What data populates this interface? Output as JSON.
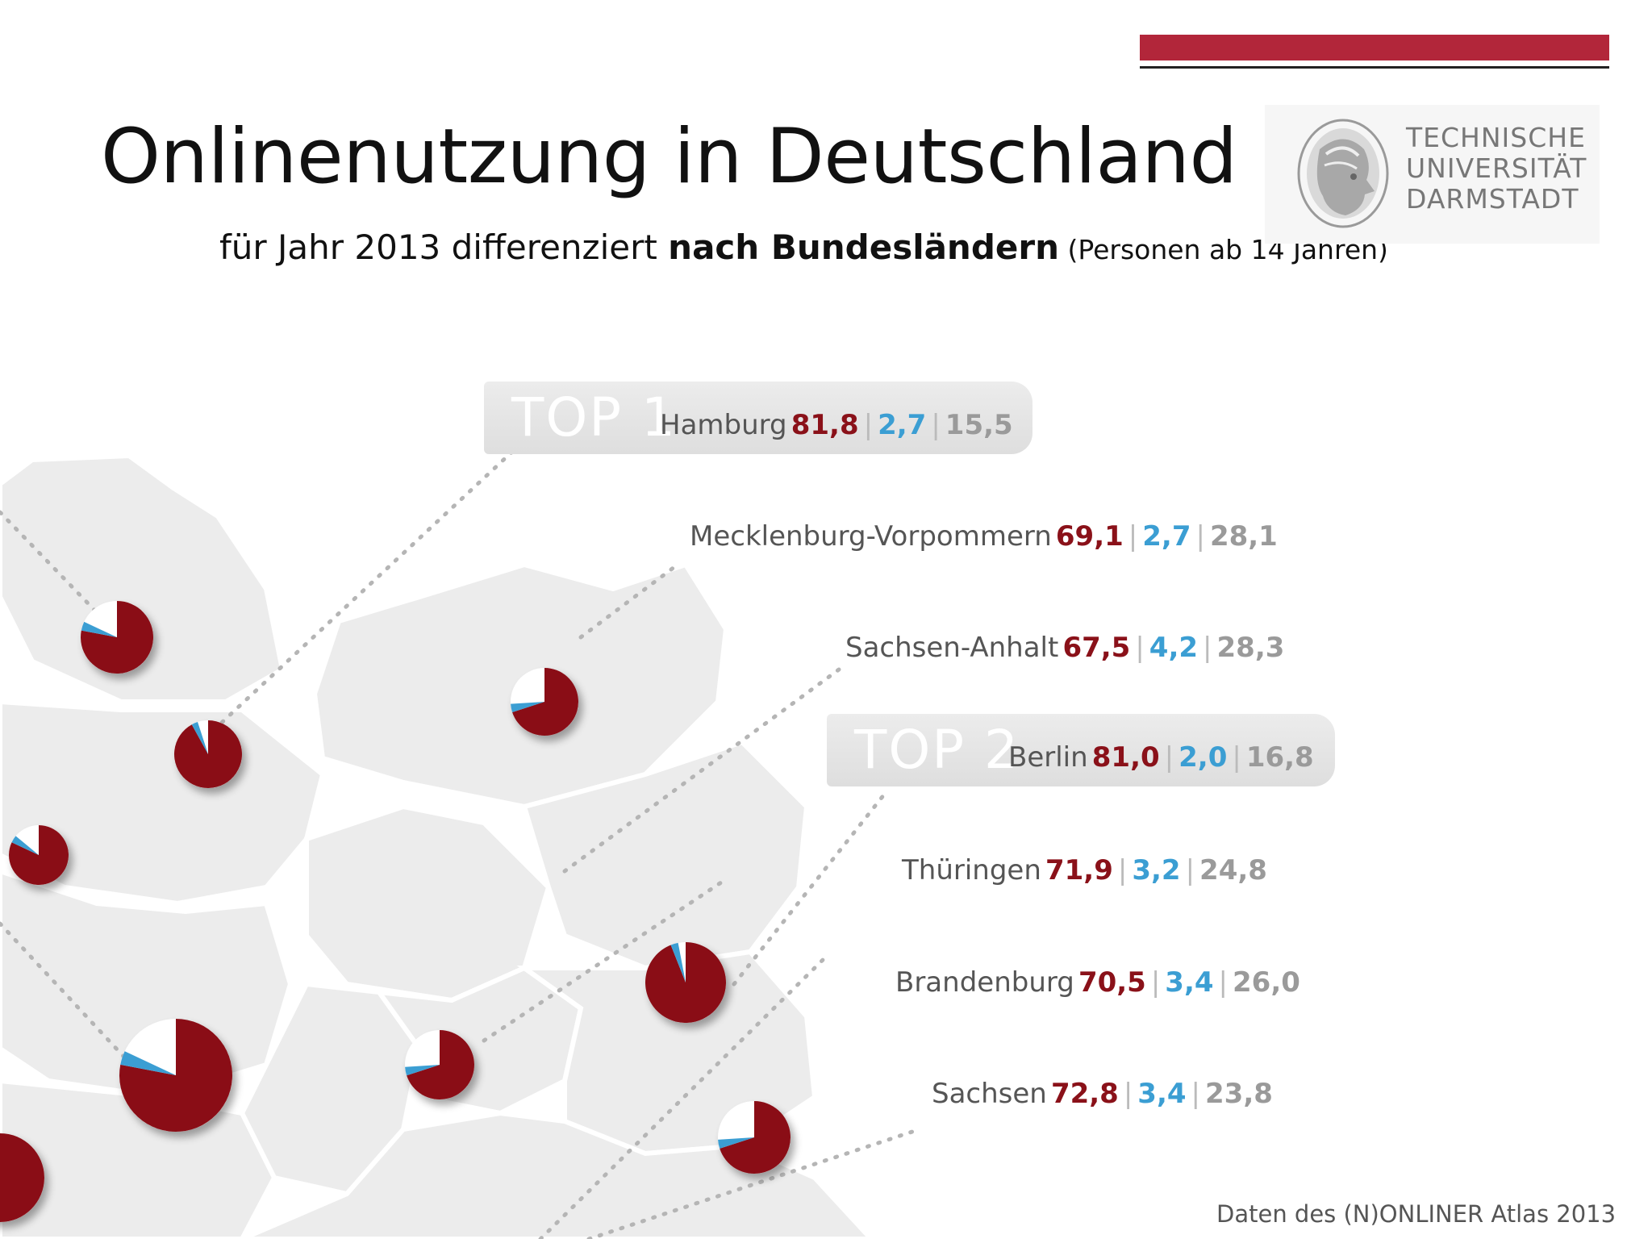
{
  "title": "Onlinenutzung in Deutschland",
  "subtitle": {
    "prefix": "für Jahr 2013 differenziert ",
    "bold": "nach Bundesländern",
    "suffix": " (Personen ab 14 Jahren)"
  },
  "logo": {
    "lines": [
      "TECHNISCHE",
      "UNIVERSITÄT",
      "DARMSTADT"
    ],
    "icon": "athena-seal-icon"
  },
  "colors": {
    "accent_red": "#b2263a",
    "onliner": "#8a1119",
    "nutzungsplaner": "#3b9ed3",
    "offliner": "#9a9a9a"
  },
  "top1": {
    "tag": "TOP 1",
    "state": "Hamburg",
    "values": [
      "81,8",
      "2,7",
      "15,5"
    ]
  },
  "top2": {
    "tag": "TOP 2",
    "state": "Berlin",
    "values": [
      "81,0",
      "2,0",
      "16,8"
    ]
  },
  "states": [
    {
      "state": "Mecklenburg-Vorpommern",
      "values": [
        "69,1",
        "2,7",
        "28,1"
      ]
    },
    {
      "state": "Sachsen-Anhalt",
      "values": [
        "67,5",
        "4,2",
        "28,3"
      ]
    },
    {
      "state": "Thüringen",
      "values": [
        "71,9",
        "3,2",
        "24,8"
      ]
    },
    {
      "state": "Brandenburg",
      "values": [
        "70,5",
        "3,4",
        "26,0"
      ]
    },
    {
      "state": "Sachsen",
      "values": [
        "72,8",
        "3,4",
        "23,8"
      ]
    }
  ],
  "separator": "|",
  "footer": "Daten des (N)ONLINER Atlas 2013"
}
